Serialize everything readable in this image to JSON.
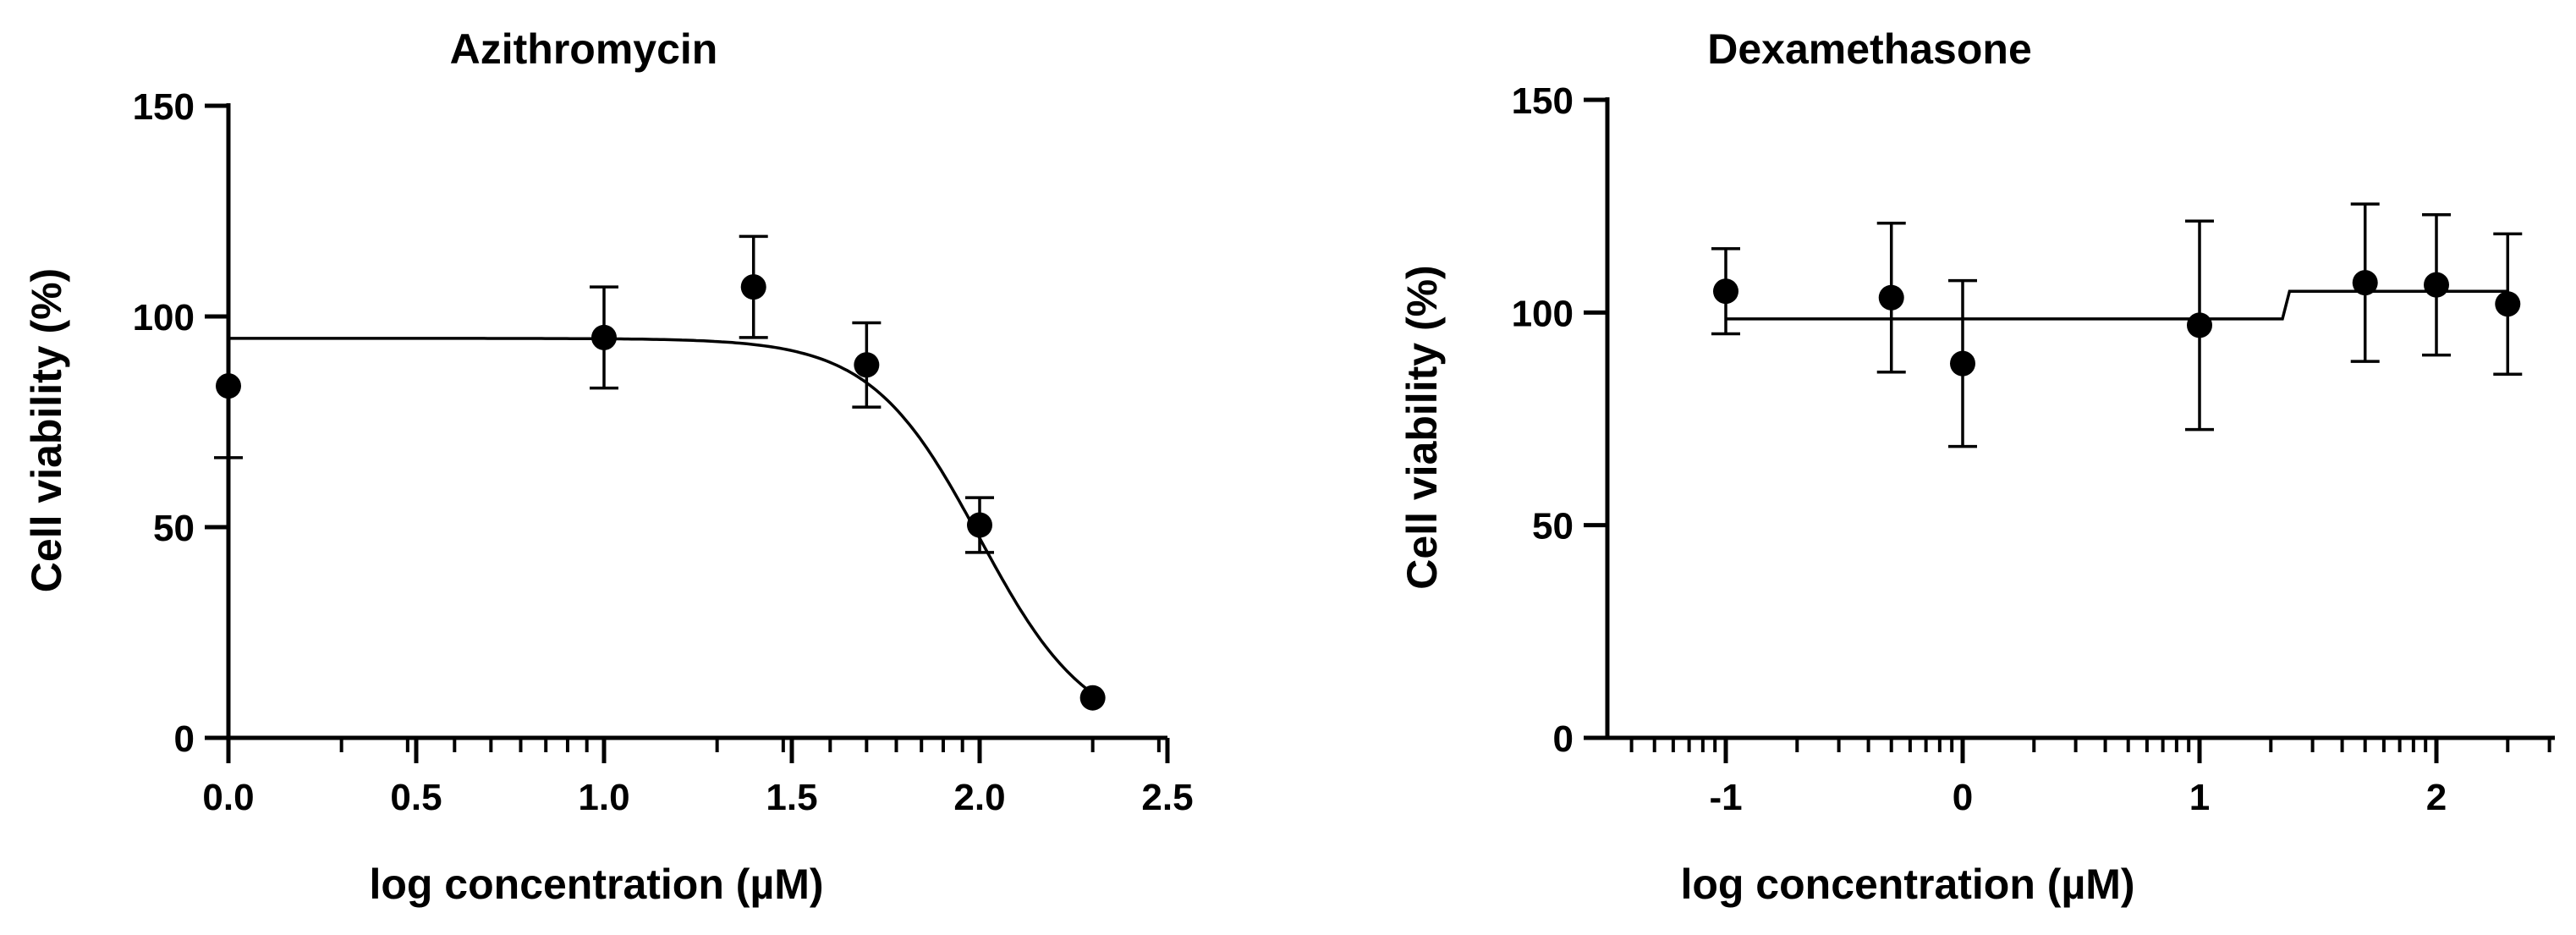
{
  "figure": {
    "background": "#ffffff",
    "ink_color": "#000000"
  },
  "chart_data": [
    {
      "type": "scatter",
      "title": "Azithromycin",
      "xlabel": "log concentration (µM)",
      "ylabel": "Cell viability (%)",
      "xlim": [
        0,
        2.5
      ],
      "ylim": [
        0,
        150
      ],
      "x_ticks": [
        {
          "value": 0.0,
          "label": "0.0"
        },
        {
          "value": 0.5,
          "label": "0.5"
        },
        {
          "value": 1.0,
          "label": "1.0"
        },
        {
          "value": 1.5,
          "label": "1.5"
        },
        {
          "value": 2.0,
          "label": "2.0"
        },
        {
          "value": 2.5,
          "label": "2.5"
        }
      ],
      "y_ticks": [
        {
          "value": 0,
          "label": "0"
        },
        {
          "value": 50,
          "label": "50"
        },
        {
          "value": 100,
          "label": "100"
        },
        {
          "value": 150,
          "label": "150"
        }
      ],
      "grid": false,
      "legend": "none",
      "series": [
        {
          "x": [
            0.0,
            1.0,
            1.398,
            1.699,
            2.0,
            2.301
          ],
          "y": [
            83.5,
            95.0,
            107.0,
            88.5,
            50.5,
            9.5
          ],
          "error_upper": [
            0,
            12.0,
            12.0,
            10.0,
            6.5,
            0
          ],
          "error_lower": [
            17.0,
            12.0,
            12.0,
            10.0,
            6.5,
            0
          ]
        }
      ],
      "fit": {
        "model": "sigmoidal dose-response",
        "top": 94.8,
        "bottom": 0,
        "logIC50": 2.0,
        "hill_slope": 3.0,
        "x_range": [
          0,
          2.3
        ]
      }
    },
    {
      "type": "scatter",
      "title": "Dexamethasone",
      "xlabel": "log concentration (µM)",
      "ylabel": "Cell viability (%)",
      "xlim": [
        -1.5,
        2.5
      ],
      "ylim": [
        0,
        150
      ],
      "x_ticks": [
        {
          "value": -1,
          "label": "-1"
        },
        {
          "value": 0,
          "label": "0"
        },
        {
          "value": 1,
          "label": "1"
        },
        {
          "value": 2,
          "label": "2"
        }
      ],
      "y_ticks": [
        {
          "value": 0,
          "label": "0"
        },
        {
          "value": 50,
          "label": "50"
        },
        {
          "value": 100,
          "label": "100"
        },
        {
          "value": 150,
          "label": "150"
        }
      ],
      "grid": false,
      "legend": "none",
      "series": [
        {
          "x": [
            -1.0,
            -0.301,
            0.0,
            1.0,
            1.699,
            2.0,
            2.301
          ],
          "y": [
            105.0,
            103.5,
            88.0,
            97.0,
            107.0,
            106.5,
            102.0
          ],
          "error_upper": [
            10.0,
            17.5,
            19.5,
            24.5,
            18.5,
            16.5,
            16.5
          ],
          "error_lower": [
            10.0,
            17.5,
            19.5,
            24.5,
            18.5,
            16.5,
            16.5
          ]
        }
      ],
      "fit": {
        "model": "step",
        "segments": [
          {
            "x": [
              -1.0,
              1.35
            ],
            "y": 98.5
          },
          {
            "x": [
              1.38,
              2.301
            ],
            "y": 105.0
          }
        ]
      }
    }
  ]
}
